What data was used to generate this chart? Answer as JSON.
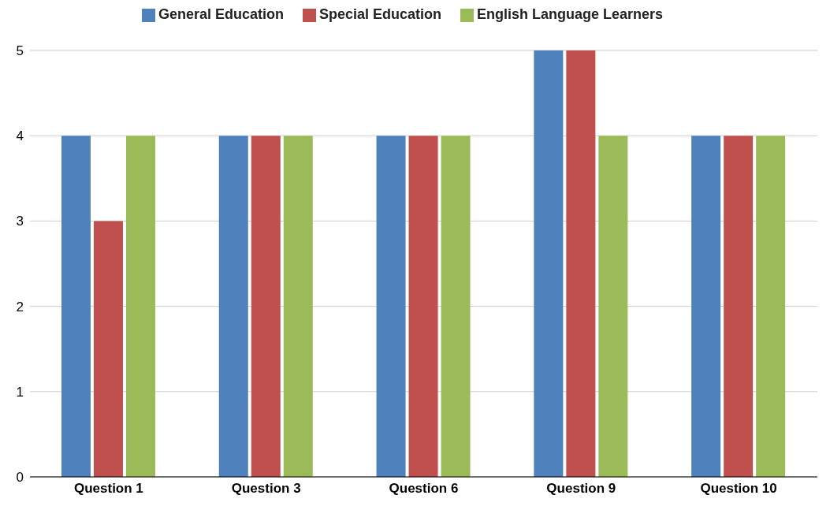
{
  "chart_data": {
    "type": "bar",
    "categories": [
      "Question 1",
      "Question 3",
      "Question 6",
      "Question 9",
      "Question 10"
    ],
    "series": [
      {
        "name": "General Education",
        "color": "#4f81bd",
        "values": [
          4,
          4,
          4,
          5,
          4
        ]
      },
      {
        "name": "Special Education",
        "color": "#c0504d",
        "values": [
          3,
          4,
          4,
          5,
          4
        ]
      },
      {
        "name": "English Language Learners",
        "color": "#9bbb59",
        "values": [
          4,
          4,
          4,
          4,
          4
        ]
      }
    ],
    "ylim": [
      0,
      5
    ],
    "yticks": [
      0,
      1,
      2,
      3,
      4,
      5
    ],
    "grid": "y",
    "legend": "top"
  }
}
